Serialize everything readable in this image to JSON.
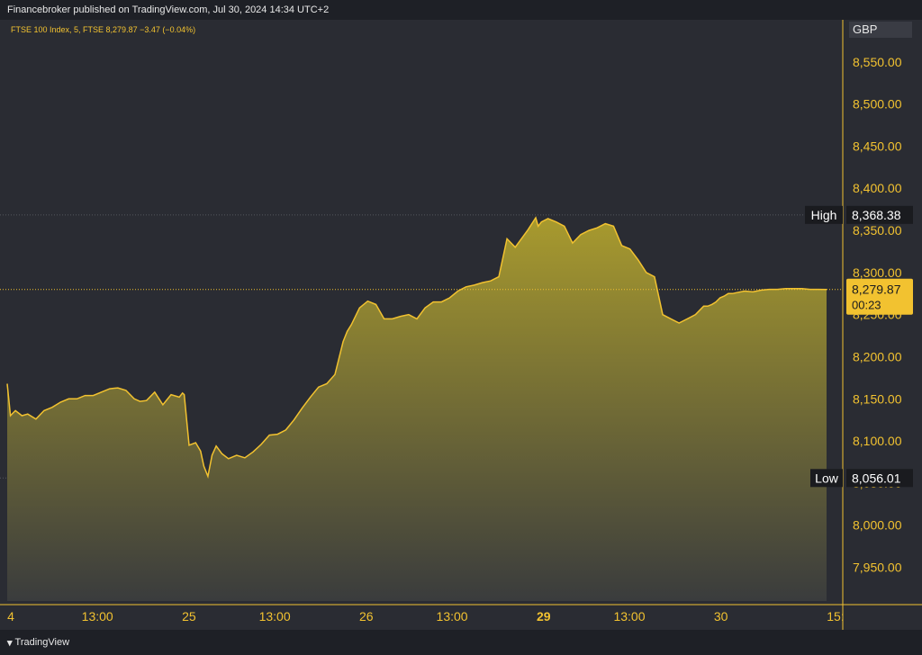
{
  "header": {
    "published_text": "Financebroker published on TradingView.com, Jul 30, 2024 14:34 UTC+2"
  },
  "legend": {
    "text": "FTSE 100 Index, 5, FTSE  8,279.87  −3.47 (−0.04%)"
  },
  "currency": "GBP",
  "footer": {
    "logo_text": "TradingView"
  },
  "colors": {
    "line": "#f2c230",
    "fill_top": "#a89a2e",
    "fill_bottom": "#3a3c3d",
    "axis_text": "#f2c230",
    "background": "#2a2c33"
  },
  "chart_data": {
    "type": "area",
    "title": "FTSE 100 Index, 5, FTSE",
    "ylim": [
      7910,
      8600
    ],
    "yticks": [
      {
        "value": 8550,
        "label": "8,550.00"
      },
      {
        "value": 8500,
        "label": "8,500.00"
      },
      {
        "value": 8450,
        "label": "8,450.00"
      },
      {
        "value": 8400,
        "label": "8,400.00"
      },
      {
        "value": 8350,
        "label": "8,350.00"
      },
      {
        "value": 8300,
        "label": "8,300.00"
      },
      {
        "value": 8250,
        "label": "8,250.00"
      },
      {
        "value": 8200,
        "label": "8,200.00"
      },
      {
        "value": 8150,
        "label": "8,150.00"
      },
      {
        "value": 8100,
        "label": "8,100.00"
      },
      {
        "value": 8050,
        "label": "8,050.00"
      },
      {
        "value": 8000,
        "label": "8,000.00"
      },
      {
        "value": 7950,
        "label": "7,950.00"
      }
    ],
    "xticks": [
      {
        "pos": 0.0,
        "label": "4",
        "bold": false
      },
      {
        "pos": 0.105,
        "label": "13:00",
        "bold": false
      },
      {
        "pos": 0.216,
        "label": "25",
        "bold": false
      },
      {
        "pos": 0.32,
        "label": "13:00",
        "bold": false
      },
      {
        "pos": 0.431,
        "label": "26",
        "bold": false
      },
      {
        "pos": 0.535,
        "label": "13:00",
        "bold": false
      },
      {
        "pos": 0.646,
        "label": "29",
        "bold": true
      },
      {
        "pos": 0.75,
        "label": "13:00",
        "bold": false
      },
      {
        "pos": 0.861,
        "label": "30",
        "bold": false
      },
      {
        "pos": 1.0,
        "label": "15:",
        "bold": false
      }
    ],
    "xlim": [
      0,
      1
    ],
    "series": [
      {
        "x": [
          0.0,
          0.004,
          0.01,
          0.018,
          0.025,
          0.035,
          0.045,
          0.055,
          0.065,
          0.075,
          0.085,
          0.095,
          0.105,
          0.115,
          0.125,
          0.135,
          0.145,
          0.155,
          0.162,
          0.17,
          0.18,
          0.19,
          0.2,
          0.21,
          0.214,
          0.216,
          0.222,
          0.23,
          0.236,
          0.24,
          0.245,
          0.25,
          0.255,
          0.262,
          0.27,
          0.28,
          0.29,
          0.3,
          0.31,
          0.32,
          0.33,
          0.34,
          0.35,
          0.36,
          0.37,
          0.38,
          0.39,
          0.4,
          0.41,
          0.415,
          0.42,
          0.43,
          0.44,
          0.45,
          0.46,
          0.47,
          0.48,
          0.49,
          0.5,
          0.51,
          0.52,
          0.53,
          0.54,
          0.55,
          0.56,
          0.57,
          0.58,
          0.59,
          0.6,
          0.61,
          0.62,
          0.635,
          0.645,
          0.648,
          0.652,
          0.66,
          0.67,
          0.68,
          0.69,
          0.7,
          0.71,
          0.72,
          0.73,
          0.74,
          0.75,
          0.76,
          0.77,
          0.78,
          0.79,
          0.8,
          0.81,
          0.82,
          0.83,
          0.84,
          0.85,
          0.855,
          0.86,
          0.865,
          0.87,
          0.875,
          0.88,
          0.885,
          0.89,
          0.9,
          0.91,
          0.92,
          0.93,
          0.94,
          0.95,
          0.96,
          0.97,
          0.98,
          0.99,
          1.0
        ],
        "values": [
          8168,
          8130,
          8136,
          8130,
          8132,
          8126,
          8136,
          8140,
          8146,
          8150,
          8150,
          8154,
          8154,
          8158,
          8162,
          8163,
          8160,
          8150,
          8147,
          8148,
          8158,
          8143,
          8155,
          8152,
          8157,
          8155,
          8095,
          8098,
          8088,
          8070,
          8058,
          8083,
          8094,
          8085,
          8079,
          8083,
          8080,
          8087,
          8096,
          8107,
          8108,
          8113,
          8125,
          8139,
          8152,
          8164,
          8168,
          8179,
          8218,
          8230,
          8238,
          8258,
          8266,
          8262,
          8245,
          8245,
          8248,
          8250,
          8245,
          8258,
          8265,
          8265,
          8270,
          8278,
          8283,
          8285,
          8288,
          8290,
          8295,
          8340,
          8330,
          8350,
          8365,
          8355,
          8360,
          8364,
          8360,
          8355,
          8335,
          8345,
          8350,
          8353,
          8358,
          8355,
          8332,
          8328,
          8315,
          8300,
          8295,
          8250,
          8245,
          8240,
          8245,
          8250,
          8260,
          8260,
          8262,
          8265,
          8270,
          8272,
          8275,
          8275,
          8276,
          8278,
          8277,
          8279,
          8280,
          8280,
          8281,
          8281,
          8281,
          8280,
          8280,
          8279.87
        ]
      }
    ],
    "high": {
      "value": 8368.38,
      "label": "High",
      "value_label": "8,368.38"
    },
    "low": {
      "value": 8056.01,
      "label": "Low",
      "value_label": "8,056.01"
    },
    "last": {
      "value": 8279.87,
      "value_label": "8,279.87",
      "countdown": "00:23"
    }
  }
}
